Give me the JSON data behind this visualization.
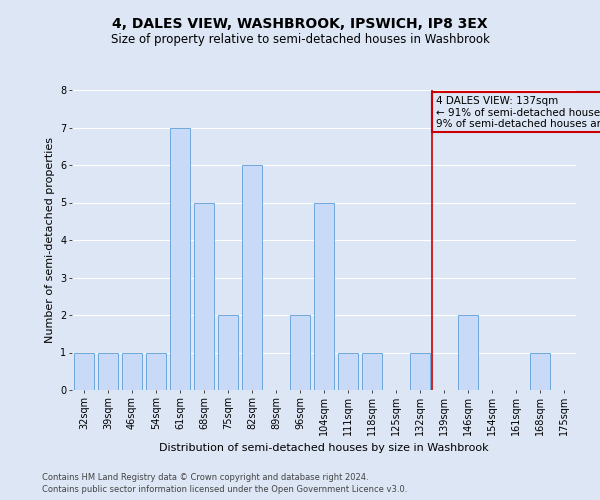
{
  "title": "4, DALES VIEW, WASHBROOK, IPSWICH, IP8 3EX",
  "subtitle": "Size of property relative to semi-detached houses in Washbrook",
  "xlabel": "Distribution of semi-detached houses by size in Washbrook",
  "ylabel": "Number of semi-detached properties",
  "footnote1": "Contains HM Land Registry data © Crown copyright and database right 2024.",
  "footnote2": "Contains public sector information licensed under the Open Government Licence v3.0.",
  "categories": [
    "32sqm",
    "39sqm",
    "46sqm",
    "54sqm",
    "61sqm",
    "68sqm",
    "75sqm",
    "82sqm",
    "89sqm",
    "96sqm",
    "104sqm",
    "111sqm",
    "118sqm",
    "125sqm",
    "132sqm",
    "139sqm",
    "146sqm",
    "154sqm",
    "161sqm",
    "168sqm",
    "175sqm"
  ],
  "values": [
    1,
    1,
    1,
    1,
    7,
    5,
    2,
    6,
    0,
    2,
    5,
    1,
    1,
    0,
    1,
    0,
    2,
    0,
    0,
    1,
    0
  ],
  "bar_color": "#c9daf8",
  "bar_edge_color": "#6fa8dc",
  "ylim": [
    0,
    8
  ],
  "yticks": [
    0,
    1,
    2,
    3,
    4,
    5,
    6,
    7,
    8
  ],
  "annotation_line_color": "#cc0000",
  "annotation_box_edge_color": "#cc0000",
  "grid_color": "#ffffff",
  "background_color": "#dce6f5",
  "title_fontsize": 10,
  "subtitle_fontsize": 8.5,
  "axis_label_fontsize": 8,
  "tick_fontsize": 7,
  "footnote_fontsize": 6,
  "annotation_fontsize": 7.5
}
